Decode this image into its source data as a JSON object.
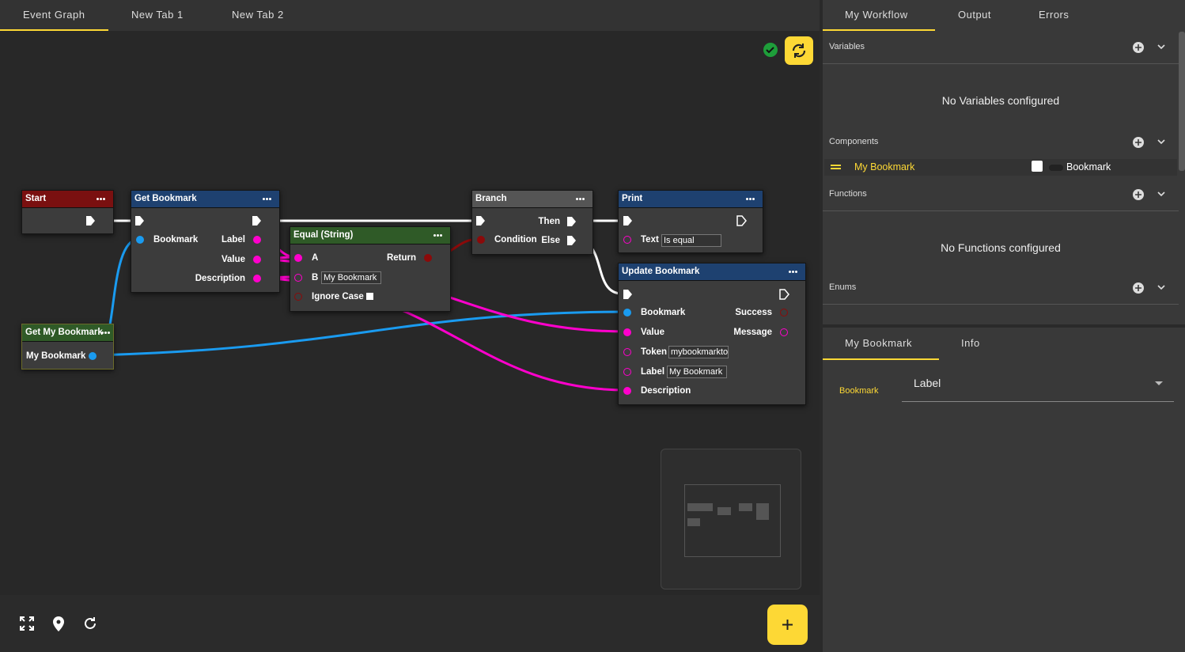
{
  "tabs": [
    "Event Graph",
    "New Tab 1",
    "New Tab 2"
  ],
  "nodes": {
    "start": {
      "title": "Start"
    },
    "get_bookmark": {
      "title": "Get Bookmark",
      "pins": [
        "Bookmark",
        "Label",
        "Value",
        "Description"
      ]
    },
    "equal": {
      "title": "Equal (String)",
      "pins": [
        "A",
        "Return",
        "B",
        "Ignore Case"
      ],
      "b_value": "My Bookmark"
    },
    "branch": {
      "title": "Branch",
      "pins": [
        "Then",
        "Condition",
        "Else"
      ]
    },
    "print": {
      "title": "Print",
      "pins": [
        "Text"
      ],
      "text_value": "Is equal"
    },
    "update": {
      "title": "Update Bookmark",
      "pins": [
        "Bookmark",
        "Success",
        "Value",
        "Message",
        "Token",
        "Label",
        "Description"
      ],
      "token_value": "mybookmarkto",
      "label_value": "My Bookmark"
    },
    "get_my_bookmark": {
      "title": "Get My Bookmark",
      "pins": [
        "My Bookmark"
      ]
    }
  },
  "side_tabs": [
    "My Workflow",
    "Output",
    "Errors"
  ],
  "sections": {
    "variables": {
      "title": "Variables",
      "empty": "No Variables configured"
    },
    "components": {
      "title": "Components",
      "items": [
        {
          "name": "My Bookmark",
          "type": "Bookmark"
        }
      ]
    },
    "functions": {
      "title": "Functions",
      "empty": "No Functions configured"
    },
    "enums": {
      "title": "Enums"
    }
  },
  "detail_tabs": [
    "My Bookmark",
    "Info"
  ],
  "detail": {
    "field_label": "Bookmark",
    "field_value": "Label"
  }
}
